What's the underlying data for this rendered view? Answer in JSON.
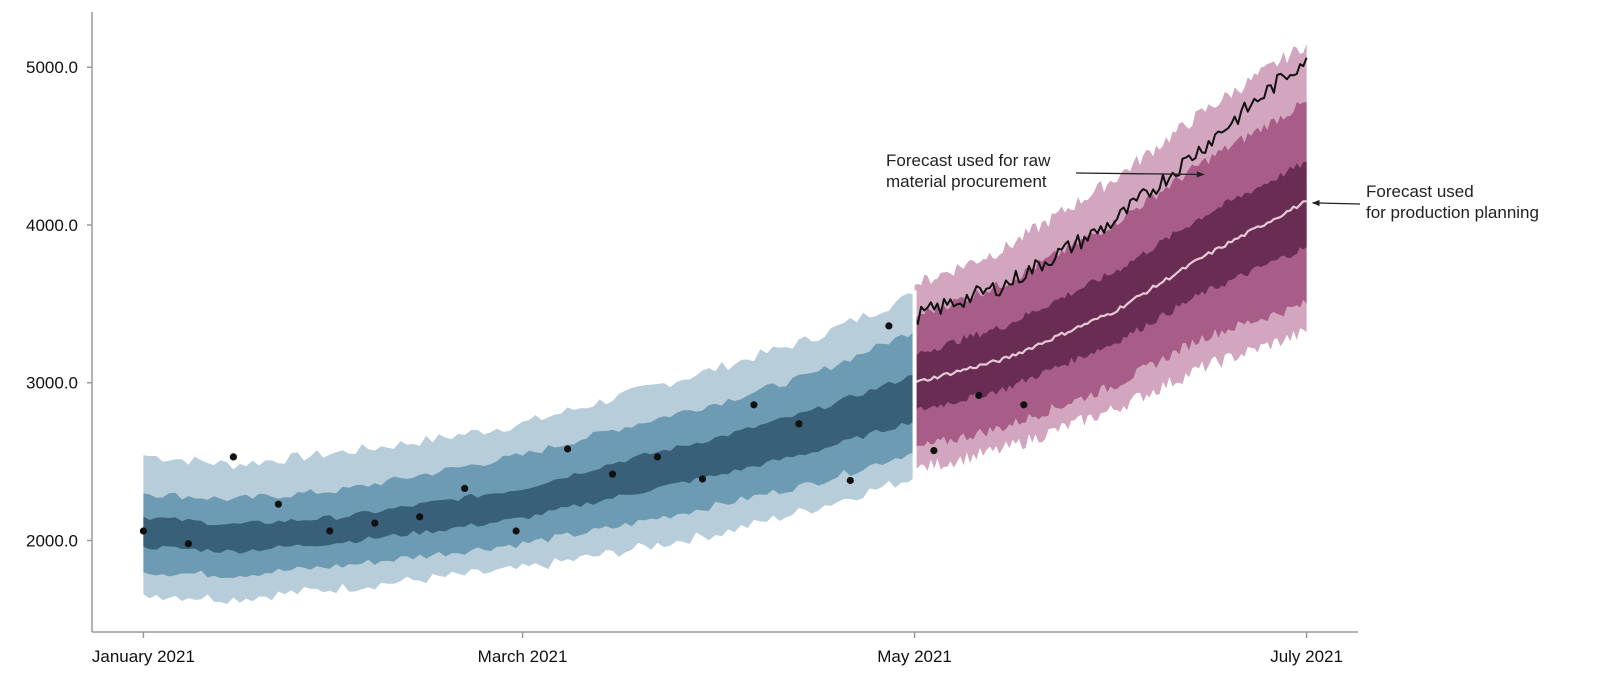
{
  "chart_data": {
    "type": "area",
    "title": "",
    "xlabel": "",
    "ylabel": "",
    "x_tick_labels": [
      "January 2021",
      "March 2021",
      "May 2021",
      "July 2021"
    ],
    "x_ticks": [
      "2021-01-01",
      "2021-03-01",
      "2021-05-01",
      "2021-07-01"
    ],
    "y_tick_labels": [
      "2000.0",
      "3000.0",
      "4000.0",
      "5000.0"
    ],
    "y_ticks": [
      2000,
      3000,
      4000,
      5000
    ],
    "xlim": [
      "2020-12-24",
      "2021-07-09"
    ],
    "ylim": [
      1420,
      5350
    ],
    "grid": false,
    "colors": {
      "history_outer": "#b7cdd9",
      "history_mid": "#6e9bb4",
      "history_inner": "#386179",
      "forecast_outer": "#d3a6bf",
      "forecast_mid": "#a75d87",
      "forecast_inner": "#692c52",
      "forecast_median": "#e7c8d6",
      "forecast_upper_line": "#111111",
      "observed_points": "#111111",
      "divider": "#ffffff",
      "axis": "#9a9a9a"
    },
    "history_band": {
      "x": [
        "2021-01-01",
        "2021-01-15",
        "2021-02-01",
        "2021-02-15",
        "2021-03-01",
        "2021-03-15",
        "2021-04-01",
        "2021-04-15",
        "2021-05-01"
      ],
      "median": [
        2050,
        2010,
        2070,
        2150,
        2230,
        2380,
        2540,
        2680,
        2900
      ],
      "inner_low": [
        1960,
        1930,
        1990,
        2060,
        2140,
        2270,
        2420,
        2560,
        2760
      ],
      "inner_high": [
        2150,
        2100,
        2150,
        2240,
        2330,
        2490,
        2660,
        2820,
        3050
      ],
      "mid_low": [
        1800,
        1780,
        1840,
        1910,
        1980,
        2080,
        2230,
        2360,
        2560
      ],
      "mid_high": [
        2300,
        2260,
        2320,
        2430,
        2540,
        2700,
        2880,
        3050,
        3330
      ],
      "outer_low": [
        1660,
        1630,
        1700,
        1760,
        1820,
        1920,
        2050,
        2200,
        2400
      ],
      "outer_high": [
        2540,
        2480,
        2560,
        2640,
        2740,
        2900,
        3100,
        3280,
        3560
      ]
    },
    "forecast_band": {
      "x": [
        "2021-05-01",
        "2021-05-15",
        "2021-06-01",
        "2021-06-15",
        "2021-07-01"
      ],
      "median": [
        3000,
        3150,
        3450,
        3800,
        4150
      ],
      "inner_low": [
        2820,
        2960,
        3250,
        3570,
        3860
      ],
      "inner_high": [
        3180,
        3360,
        3700,
        4060,
        4400
      ],
      "mid_low": [
        2580,
        2720,
        2980,
        3290,
        3500
      ],
      "mid_high": [
        3420,
        3630,
        4010,
        4400,
        4780
      ],
      "outer_low": [
        2450,
        2580,
        2830,
        3100,
        3320
      ],
      "outer_high": [
        3620,
        3850,
        4290,
        4720,
        5150
      ],
      "upper_line": [
        3420,
        3620,
        4020,
        4500,
        5060
      ]
    },
    "observed_points": [
      {
        "x": "2021-01-01",
        "y": 2060
      },
      {
        "x": "2021-01-08",
        "y": 1980
      },
      {
        "x": "2021-01-15",
        "y": 2530
      },
      {
        "x": "2021-01-22",
        "y": 2230
      },
      {
        "x": "2021-01-30",
        "y": 2060
      },
      {
        "x": "2021-02-06",
        "y": 2110
      },
      {
        "x": "2021-02-13",
        "y": 2150
      },
      {
        "x": "2021-02-20",
        "y": 2330
      },
      {
        "x": "2021-02-28",
        "y": 2060
      },
      {
        "x": "2021-03-08",
        "y": 2580
      },
      {
        "x": "2021-03-15",
        "y": 2420
      },
      {
        "x": "2021-03-22",
        "y": 2530
      },
      {
        "x": "2021-03-29",
        "y": 2390
      },
      {
        "x": "2021-04-06",
        "y": 2860
      },
      {
        "x": "2021-04-13",
        "y": 2740
      },
      {
        "x": "2021-04-21",
        "y": 2380
      },
      {
        "x": "2021-04-27",
        "y": 3360
      },
      {
        "x": "2021-05-04",
        "y": 2570
      },
      {
        "x": "2021-05-11",
        "y": 2920
      },
      {
        "x": "2021-05-18",
        "y": 2860
      }
    ],
    "annotations": [
      {
        "text": [
          "Forecast used for raw",
          "material procurement"
        ],
        "points_to": {
          "x": "2021-06-15",
          "y": 4320
        }
      },
      {
        "text": [
          "Forecast used",
          "for production planning"
        ],
        "points_to": {
          "x": "2021-07-01",
          "y": 4140
        }
      }
    ]
  }
}
